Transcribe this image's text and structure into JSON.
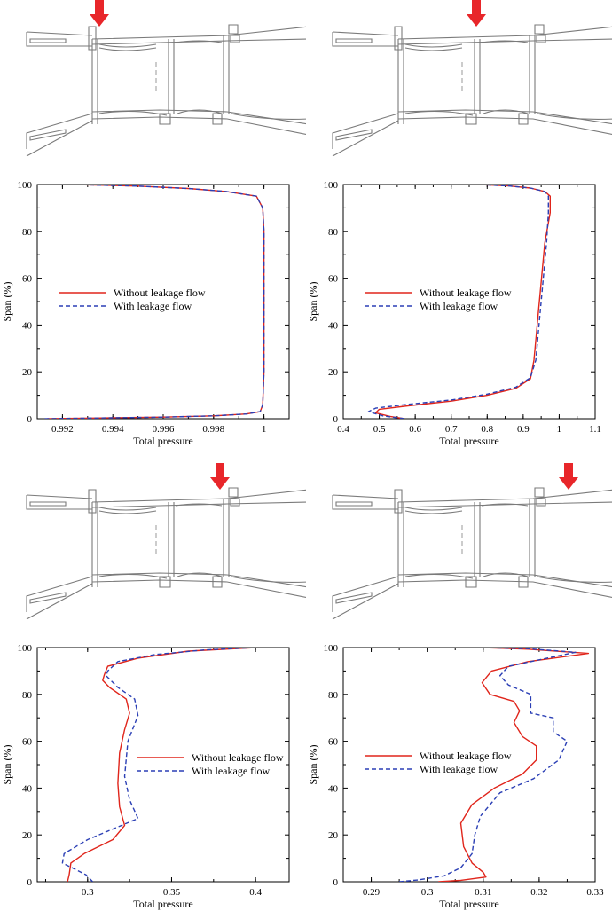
{
  "colors": {
    "without_leakage": "#e0251b",
    "with_leakage": "#2b3fb5",
    "arrow": "#e8262a",
    "geometry_stroke": "#7a7a7a"
  },
  "panels": [
    {
      "id": "top-left",
      "arrow_station": "stator-inlet"
    },
    {
      "id": "top-right",
      "arrow_station": "rotor-inlet"
    },
    {
      "id": "bottom-left",
      "arrow_station": "rotor-outlet"
    },
    {
      "id": "bottom-right",
      "arrow_station": "outlet-duct"
    }
  ],
  "chart_data": [
    {
      "type": "line",
      "xlabel": "Total pressure",
      "ylabel": "Span (%)",
      "xlim": [
        0.991,
        1.001
      ],
      "ylim": [
        0,
        100
      ],
      "xticks": [
        0.992,
        0.994,
        0.996,
        0.998,
        1
      ],
      "xtick_labels": [
        "0.992",
        "0.994",
        "0.996",
        "0.998",
        "1"
      ],
      "yticks": [
        0,
        20,
        40,
        60,
        80,
        100
      ],
      "ytick_labels": [
        "0",
        "20",
        "40",
        "60",
        "80",
        "100"
      ],
      "legend": [
        "Without leakage flow",
        "With leakage flow"
      ],
      "legend_position": "middle-left",
      "series": [
        {
          "name": "Without leakage flow",
          "style": "solid",
          "x": [
            0.9914,
            0.9935,
            0.996,
            0.998,
            0.9993,
            0.99985,
            0.99995,
            1.0,
            1.0,
            1.0,
            0.99995,
            0.9997,
            0.9985,
            0.997,
            0.995,
            0.9925
          ],
          "y": [
            0,
            0.3,
            0.7,
            1.2,
            2.0,
            3.0,
            6.0,
            20.0,
            50.0,
            80.0,
            90.0,
            95.0,
            97.0,
            98.3,
            99.3,
            100.0
          ]
        },
        {
          "name": "With leakage flow",
          "style": "dashed",
          "x": [
            0.9913,
            0.9935,
            0.996,
            0.998,
            0.9993,
            0.99985,
            0.99995,
            1.0,
            1.0,
            1.0,
            0.99995,
            0.9997,
            0.9985,
            0.997,
            0.995,
            0.9925
          ],
          "y": [
            0,
            0.3,
            0.7,
            1.2,
            2.0,
            3.0,
            6.0,
            20.0,
            50.0,
            80.0,
            90.0,
            95.0,
            97.0,
            98.3,
            99.3,
            100.0
          ]
        }
      ]
    },
    {
      "type": "line",
      "xlabel": "Total pressure",
      "ylabel": "Span (%)",
      "xlim": [
        0.4,
        1.1
      ],
      "ylim": [
        0,
        100
      ],
      "xticks": [
        0.4,
        0.5,
        0.6,
        0.7,
        0.8,
        0.9,
        1,
        1.1
      ],
      "xtick_labels": [
        "0.4",
        "0.5",
        "0.6",
        "0.7",
        "0.8",
        "0.9",
        "1",
        "1.1"
      ],
      "yticks": [
        0,
        20,
        40,
        60,
        80,
        100
      ],
      "ytick_labels": [
        "0",
        "20",
        "40",
        "60",
        "80",
        "100"
      ],
      "legend": [
        "Without leakage flow",
        "With leakage flow"
      ],
      "legend_position": "middle-left",
      "series": [
        {
          "name": "Without leakage flow",
          "style": "solid",
          "x": [
            0.57,
            0.53,
            0.49,
            0.5,
            0.58,
            0.7,
            0.8,
            0.88,
            0.92,
            0.93,
            0.945,
            0.96,
            0.975,
            0.975,
            0.96,
            0.92,
            0.86,
            0.78
          ],
          "y": [
            0,
            1.0,
            2.5,
            4.0,
            5.5,
            7.5,
            10.0,
            13.0,
            17.0,
            25.0,
            50.0,
            75.0,
            88.0,
            95.0,
            97.0,
            98.5,
            99.4,
            100.0
          ]
        },
        {
          "name": "With leakage flow",
          "style": "dashed",
          "x": [
            0.57,
            0.51,
            0.47,
            0.49,
            0.57,
            0.7,
            0.8,
            0.88,
            0.92,
            0.935,
            0.95,
            0.965,
            0.97,
            0.97,
            0.96,
            0.92,
            0.86,
            0.78
          ],
          "y": [
            0,
            1.2,
            3.0,
            4.5,
            6.0,
            8.0,
            10.5,
            13.5,
            17.5,
            25.0,
            50.0,
            75.0,
            88.0,
            95.0,
            97.0,
            98.5,
            99.4,
            100.0
          ]
        }
      ]
    },
    {
      "type": "line",
      "xlabel": "Total pressure",
      "ylabel": "Span (%)",
      "xlim": [
        0.27,
        0.42
      ],
      "ylim": [
        0,
        100
      ],
      "xticks": [
        0.3,
        0.35,
        0.4
      ],
      "xtick_labels": [
        "0.3",
        "0.35",
        "0.4"
      ],
      "yticks": [
        0,
        20,
        40,
        60,
        80,
        100
      ],
      "ytick_labels": [
        "0",
        "20",
        "40",
        "60",
        "80",
        "100"
      ],
      "legend": [
        "Without leakage flow",
        "With leakage flow"
      ],
      "legend_position": "center-right",
      "series": [
        {
          "name": "Without leakage flow",
          "style": "solid",
          "x": [
            0.288,
            0.289,
            0.29,
            0.298,
            0.315,
            0.322,
            0.319,
            0.318,
            0.319,
            0.322,
            0.325,
            0.323,
            0.313,
            0.309,
            0.31,
            0.312,
            0.33,
            0.36,
            0.4
          ],
          "y": [
            0,
            3.0,
            8.0,
            12.0,
            18.0,
            24.0,
            32.0,
            42.0,
            55.0,
            65.0,
            72.0,
            78.0,
            83.0,
            86.0,
            88.5,
            92.0,
            95.5,
            98.5,
            100.0
          ]
        },
        {
          "name": "With leakage flow",
          "style": "dashed",
          "x": [
            0.303,
            0.299,
            0.285,
            0.286,
            0.3,
            0.32,
            0.33,
            0.325,
            0.322,
            0.324,
            0.33,
            0.328,
            0.318,
            0.311,
            0.312,
            0.318,
            0.34,
            0.37,
            0.4
          ],
          "y": [
            0,
            3.0,
            8.0,
            12.0,
            18.0,
            24.0,
            27.0,
            35.0,
            45.0,
            60.0,
            71.0,
            78.0,
            83.0,
            88.0,
            90.0,
            94.0,
            97.0,
            99.0,
            100.0
          ]
        }
      ]
    },
    {
      "type": "line",
      "xlabel": "Total pressure",
      "ylabel": "Span (%)",
      "xlim": [
        0.285,
        0.33
      ],
      "ylim": [
        0,
        100
      ],
      "xticks": [
        0.29,
        0.3,
        0.31,
        0.32,
        0.33
      ],
      "xtick_labels": [
        "0.29",
        "0.3",
        "0.31",
        "0.32",
        "0.33"
      ],
      "yticks": [
        0,
        20,
        40,
        60,
        80,
        100
      ],
      "ytick_labels": [
        "0",
        "20",
        "40",
        "60",
        "80",
        "100"
      ],
      "legend": [
        "Without leakage flow",
        "With leakage flow"
      ],
      "legend_position": "middle-left",
      "series": [
        {
          "name": "Without leakage flow",
          "style": "solid",
          "x": [
            0.302,
            0.306,
            0.3105,
            0.31,
            0.308,
            0.3065,
            0.306,
            0.308,
            0.312,
            0.317,
            0.3195,
            0.3195,
            0.317,
            0.3155,
            0.3165,
            0.3155,
            0.3112,
            0.3098,
            0.3115,
            0.318,
            0.3288,
            0.318,
            0.31
          ],
          "y": [
            0,
            0.6,
            2.0,
            4.0,
            8.0,
            15.0,
            25.0,
            33.0,
            40.0,
            46.0,
            52.0,
            58.0,
            62.0,
            68.0,
            73.0,
            77.0,
            80.0,
            85.0,
            90.0,
            94.0,
            97.5,
            99.3,
            100.0
          ]
        },
        {
          "name": "With leakage flow",
          "style": "dashed",
          "x": [
            0.295,
            0.2985,
            0.303,
            0.306,
            0.308,
            0.3085,
            0.3095,
            0.313,
            0.319,
            0.3235,
            0.325,
            0.3225,
            0.3225,
            0.3185,
            0.3185,
            0.3145,
            0.313,
            0.3145,
            0.3205,
            0.3265,
            0.318,
            0.31
          ],
          "y": [
            0,
            0.8,
            2.5,
            6.0,
            12.0,
            20.0,
            28.0,
            38.0,
            44.0,
            52.0,
            60.0,
            64.0,
            70.0,
            72.0,
            80.0,
            84.0,
            88.0,
            92.0,
            95.0,
            98.0,
            99.5,
            100.0
          ]
        }
      ]
    }
  ]
}
